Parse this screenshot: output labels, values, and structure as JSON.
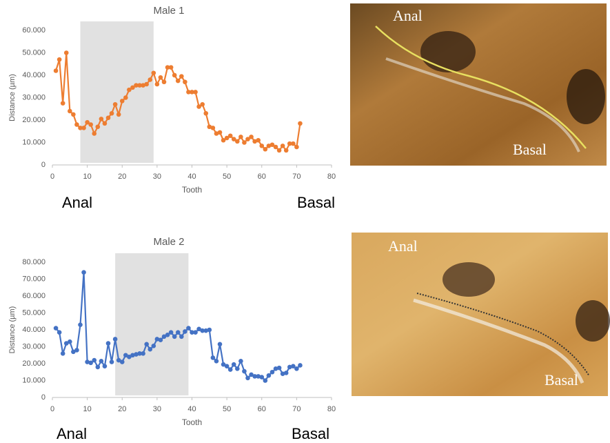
{
  "chart_data": [
    {
      "type": "line",
      "title": "Male 1",
      "x_label": "Tooth",
      "y_label": "Distance (µm)",
      "annotations": [
        "Anal",
        "Basal"
      ],
      "shaded_range": [
        8,
        29
      ],
      "x": [
        1,
        2,
        3,
        4,
        5,
        6,
        7,
        8,
        9,
        10,
        11,
        12,
        13,
        14,
        15,
        16,
        17,
        18,
        19,
        20,
        21,
        22,
        23,
        24,
        25,
        26,
        27,
        28,
        29,
        30,
        31,
        32,
        33,
        34,
        35,
        36,
        37,
        38,
        39,
        40,
        41,
        42,
        43,
        44,
        45,
        46,
        47,
        48,
        49,
        50,
        51,
        52,
        53,
        54,
        55,
        56,
        57,
        58,
        59,
        60,
        61,
        62,
        63,
        64,
        65,
        66,
        67,
        68,
        69,
        70,
        71
      ],
      "series": [
        {
          "color": "#ED7D31",
          "values": [
            42,
            47,
            27.5,
            50,
            24,
            22.5,
            18,
            16.5,
            16.5,
            19,
            18,
            14,
            17,
            20.5,
            18.5,
            21,
            23,
            27,
            22.5,
            28.5,
            30,
            33.5,
            34.5,
            35.5,
            35.5,
            35.5,
            36,
            38,
            41,
            36,
            39,
            37,
            43.5,
            43.5,
            40,
            37.5,
            39.5,
            37,
            32.5,
            32.5,
            32.5,
            26,
            27,
            23,
            17,
            16.5,
            14,
            14.5,
            11,
            12,
            13,
            11.5,
            10.5,
            12.5,
            10,
            11.5,
            12.5,
            10.5,
            11,
            8.5,
            7,
            8.5,
            9,
            8,
            6.5,
            8.5,
            6.5,
            9.5,
            9.5,
            8,
            18.5
          ]
        }
      ],
      "xlim": [
        0,
        80
      ],
      "xticks": [
        0,
        10,
        20,
        30,
        40,
        50,
        60,
        70,
        80
      ],
      "ylim": [
        0,
        60
      ],
      "yticks": [
        0,
        {
          "value": 10,
          "label": "10.000"
        },
        {
          "value": 20,
          "label": "20.000"
        },
        {
          "value": 30,
          "label": "30.000"
        },
        {
          "value": 40,
          "label": "40.000"
        },
        {
          "value": 50,
          "label": "50.000"
        },
        {
          "value": 60,
          "label": "60.000"
        }
      ],
      "grid": false
    },
    {
      "type": "line",
      "title": "Male 2",
      "x_label": "Tooth",
      "y_label": "Distance (µm)",
      "annotations": [
        "Anal",
        "Basal"
      ],
      "shaded_range": [
        18,
        39
      ],
      "x": [
        1,
        2,
        3,
        4,
        5,
        6,
        7,
        8,
        9,
        10,
        11,
        12,
        13,
        14,
        15,
        16,
        17,
        18,
        19,
        20,
        21,
        22,
        23,
        24,
        25,
        26,
        27,
        28,
        29,
        30,
        31,
        32,
        33,
        34,
        35,
        36,
        37,
        38,
        39,
        40,
        41,
        42,
        43,
        44,
        45,
        46,
        47,
        48,
        49,
        50,
        51,
        52,
        53,
        54,
        55,
        56,
        57,
        58,
        59,
        60,
        61,
        62,
        63,
        64,
        65,
        66,
        67,
        68,
        69,
        70,
        71
      ],
      "series": [
        {
          "color": "#4472C4",
          "values": [
            41,
            38.5,
            26,
            32,
            33,
            27,
            28,
            43,
            74,
            21,
            20.5,
            22,
            18,
            21.5,
            18.5,
            32,
            21,
            34.5,
            22,
            21,
            25,
            24,
            25,
            25.5,
            26,
            26,
            31.5,
            28.5,
            30.5,
            34.5,
            34,
            36,
            37,
            38.5,
            36,
            38.5,
            36,
            39,
            41,
            38.5,
            38.5,
            40.5,
            39.5,
            39.5,
            40,
            23.5,
            21.5,
            31.5,
            19.5,
            18.5,
            16.5,
            19.5,
            17,
            21.5,
            15.5,
            11.5,
            13.5,
            12.5,
            12.5,
            12,
            10,
            13,
            15,
            17,
            17.5,
            14,
            14.5,
            18,
            18.5,
            17,
            19
          ]
        }
      ],
      "xlim": [
        0,
        80
      ],
      "xticks": [
        0,
        10,
        20,
        30,
        40,
        50,
        60,
        70,
        80
      ],
      "ylim": [
        0,
        80
      ],
      "yticks": [
        0,
        {
          "value": 10,
          "label": "10.000"
        },
        {
          "value": 20,
          "label": "20.000"
        },
        {
          "value": 30,
          "label": "30.000"
        },
        {
          "value": 40,
          "label": "40.000"
        },
        {
          "value": 50,
          "label": "50.000"
        },
        {
          "value": 60,
          "label": "60.000"
        },
        {
          "value": 70,
          "label": "70.000"
        },
        {
          "value": 80,
          "label": "80.000"
        }
      ],
      "grid": false
    }
  ],
  "photos": [
    {
      "labels": [
        "Anal",
        "Basal"
      ]
    },
    {
      "labels": [
        "Anal",
        "Basal"
      ]
    }
  ]
}
